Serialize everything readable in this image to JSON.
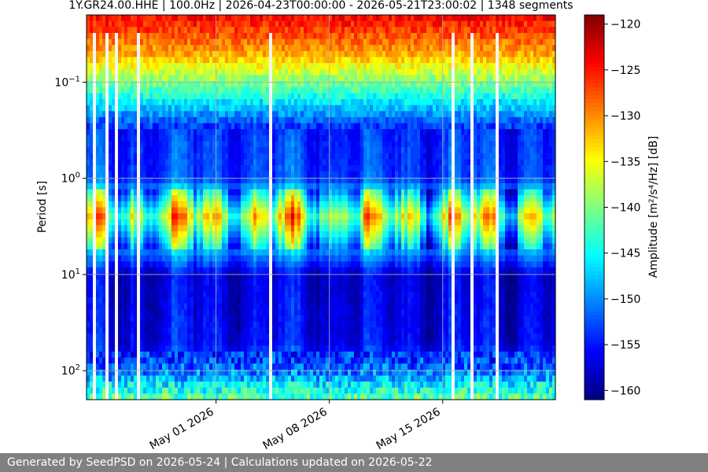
{
  "chart_data": {
    "type": "heatmap",
    "title": "1Y.GR24.00.HHE | 100.0Hz | 2026-04-23T00:00:00 - 2026-05-21T23:00:02 | 1348 segments",
    "xlabel": "",
    "ylabel": "Period [s]",
    "y_scale": "log",
    "y_inverted": true,
    "x_range": [
      "2026-04-23T00:00:00",
      "2026-05-21T23:00:02"
    ],
    "y_range": [
      0.02,
      200
    ],
    "x_ticks": [
      {
        "date": "2026-05-01",
        "label": "May 01 2026"
      },
      {
        "date": "2026-05-08",
        "label": "May 08 2026"
      },
      {
        "date": "2026-05-15",
        "label": "May 15 2026"
      }
    ],
    "y_ticks": [
      {
        "value": 0.1,
        "mantissa": "10",
        "exponent": "−1"
      },
      {
        "value": 1,
        "mantissa": "10",
        "exponent": "0"
      },
      {
        "value": 10,
        "mantissa": "10",
        "exponent": "1"
      },
      {
        "value": 100,
        "mantissa": "10",
        "exponent": "2"
      }
    ],
    "grid": true,
    "colormap": "jet",
    "colorbar": {
      "label": "Amplitude [m²/s⁴/Hz] [dB]",
      "min": -161,
      "max": -119,
      "ticks": [
        -120,
        -125,
        -130,
        -135,
        -140,
        -145,
        -150,
        -155,
        -160
      ]
    },
    "period_profile_db": [
      {
        "period": 0.02,
        "db": -124
      },
      {
        "period": 0.05,
        "db": -131
      },
      {
        "period": 0.1,
        "db": -140
      },
      {
        "period": 0.3,
        "db": -154
      },
      {
        "period": 1.0,
        "db": -153
      },
      {
        "period": 2.5,
        "db": -136
      },
      {
        "period": 5.0,
        "db": -147
      },
      {
        "period": 10,
        "db": -157
      },
      {
        "period": 50,
        "db": -156
      },
      {
        "period": 100,
        "db": -151
      },
      {
        "period": 200,
        "db": -141
      }
    ],
    "segments": 1348
  },
  "footer": {
    "text": "Generated by SeedPSD on 2026-05-24 | Calculations updated on 2026-05-22"
  }
}
